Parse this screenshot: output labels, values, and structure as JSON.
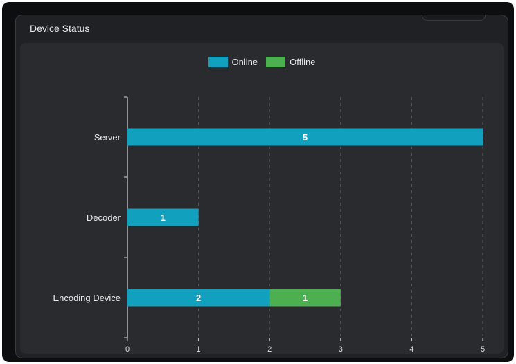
{
  "panel": {
    "title": "Device Status"
  },
  "colors": {
    "online": "#11a0bd",
    "offline": "#4caf50",
    "axis": "#d8d8d8",
    "grid": "#5a5b60"
  },
  "chart_data": {
    "type": "bar",
    "orientation": "horizontal",
    "stacked": true,
    "title": "",
    "xlabel": "",
    "ylabel": "",
    "categories": [
      "Server",
      "Decoder",
      "Encoding Device"
    ],
    "series": [
      {
        "name": "Online",
        "color": "#11a0bd",
        "values": [
          5,
          1,
          2
        ]
      },
      {
        "name": "Offline",
        "color": "#4caf50",
        "values": [
          0,
          0,
          1
        ]
      }
    ],
    "xlim": [
      0,
      5
    ],
    "xticks": [
      "0",
      "1",
      "2",
      "3",
      "4",
      "5"
    ],
    "grid": "vertical dashed",
    "legend": "top-center"
  }
}
